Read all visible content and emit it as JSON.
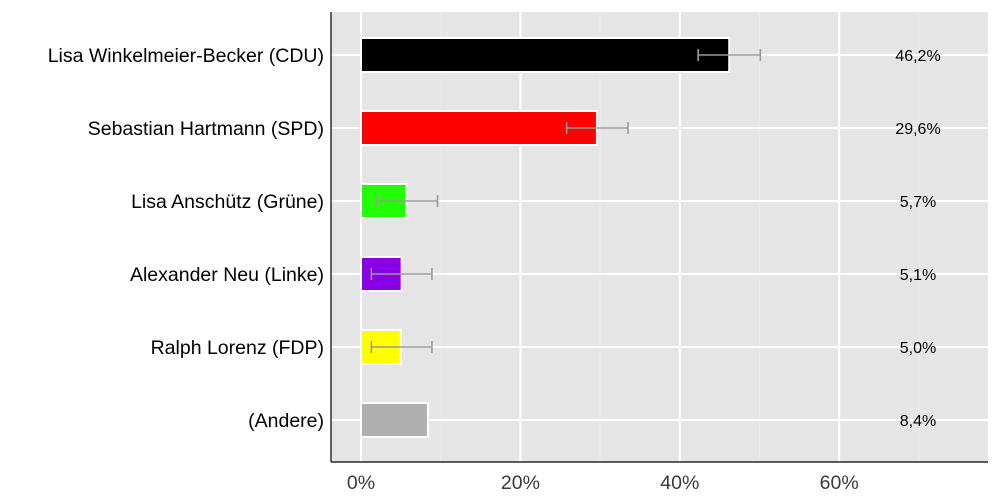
{
  "chart_data": {
    "type": "bar",
    "orientation": "horizontal",
    "title": "",
    "xlabel": "",
    "ylabel": "",
    "xlim": [
      -3.8,
      78.6
    ],
    "x_ticks": [
      0,
      20,
      40,
      60
    ],
    "x_tick_labels": [
      "0%",
      "20%",
      "40%",
      "60%"
    ],
    "minor_ticks": [
      10,
      30,
      50,
      70
    ],
    "grid": true,
    "legend": null,
    "categories": [
      "Lisa Winkelmeier-Becker (CDU)",
      "Sebastian Hartmann (SPD)",
      "Lisa Anschütz (Grüne)",
      "Alexander Neu (Linke)",
      "Ralph Lorenz (FDP)",
      "(Andere)"
    ],
    "values": [
      46.2,
      29.6,
      5.7,
      5.1,
      5.0,
      8.4
    ],
    "value_labels": [
      "46,2%",
      "29,6%",
      "5,7%",
      "5,1%",
      "5,0%",
      "8,4%"
    ],
    "colors": [
      "#000000",
      "#ff0000",
      "#22ff00",
      "#8a00e6",
      "#ffff00",
      "#b0b0b0"
    ],
    "error_bars": [
      {
        "low": 42.3,
        "high": 50.1
      },
      {
        "low": 25.8,
        "high": 33.5
      },
      {
        "low": 1.9,
        "high": 9.6
      },
      {
        "low": 1.3,
        "high": 8.9
      },
      {
        "low": 1.3,
        "high": 8.9
      },
      null
    ]
  },
  "style": {
    "panel_bg": "#e5e5e5",
    "grid_major": "#ffffff",
    "grid_minor": "#ececec",
    "error_bar_color": "#999999",
    "axis_color": "#000000"
  }
}
